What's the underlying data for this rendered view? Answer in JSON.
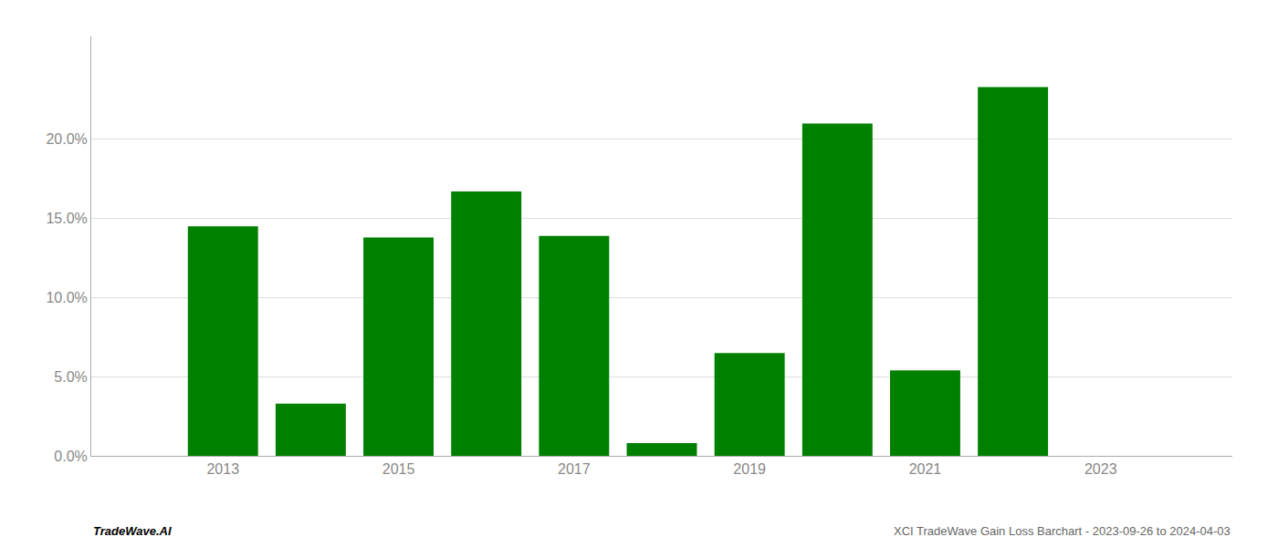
{
  "chart_data": {
    "type": "bar",
    "x": [
      2013,
      2014,
      2015,
      2016,
      2017,
      2018,
      2019,
      2020,
      2021,
      2022
    ],
    "values": [
      0.145,
      0.033,
      0.138,
      0.167,
      0.139,
      0.008,
      0.065,
      0.21,
      0.054,
      0.233
    ],
    "color": "#008000",
    "xlim": [
      2011.5,
      2024.5
    ],
    "xticks": [
      2013,
      2015,
      2017,
      2019,
      2021,
      2023
    ],
    "ylim": [
      0.0,
      0.265
    ],
    "yticks": [
      {
        "value": 0.0,
        "label": "0.0%"
      },
      {
        "value": 0.05,
        "label": "5.0%"
      },
      {
        "value": 0.1,
        "label": "10.0%"
      },
      {
        "value": 0.15,
        "label": "15.0%"
      },
      {
        "value": 0.2,
        "label": "20.0%"
      }
    ],
    "grid": true,
    "annotations": [
      "TradeWave.AI",
      "XCI TradeWave Gain Loss Barchart - 2023-09-26 to 2024-04-03"
    ]
  }
}
